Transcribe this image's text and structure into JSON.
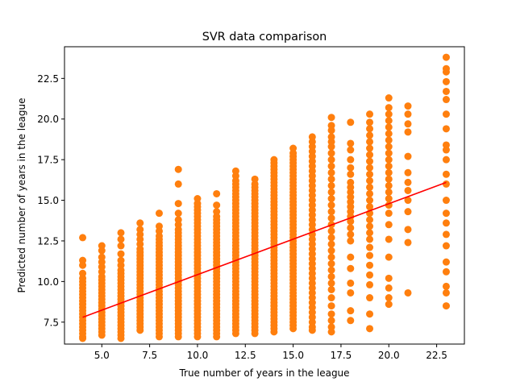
{
  "chart_data": {
    "type": "scatter",
    "title": "SVR data comparison",
    "xlabel": "True number of years in the league",
    "ylabel": "Predicted number of years in the league",
    "xlim": [
      3.05,
      23.95
    ],
    "ylim": [
      6.15,
      24.45
    ],
    "xticks": [
      5.0,
      7.5,
      10.0,
      12.5,
      15.0,
      17.5,
      20.0,
      22.5
    ],
    "xtick_labels": [
      "5.0",
      "7.5",
      "10.0",
      "12.5",
      "15.0",
      "17.5",
      "20.0",
      "22.5"
    ],
    "yticks": [
      7.5,
      10.0,
      12.5,
      15.0,
      17.5,
      20.0,
      22.5
    ],
    "ytick_labels": [
      "7.5",
      "10.0",
      "12.5",
      "15.0",
      "17.5",
      "20.0",
      "22.5"
    ],
    "grid": false,
    "legend": "none",
    "point_color": "#ff7f0e",
    "line_color": "#ff0000",
    "columns": [
      {
        "x": 4,
        "points": [
          6.5,
          6.6,
          6.8,
          7.0,
          7.2,
          7.4,
          7.6,
          7.8,
          8.0,
          8.2,
          8.4,
          8.6,
          8.8,
          9.0,
          9.2,
          9.4,
          9.6,
          9.8,
          10.0,
          10.2,
          10.5,
          11.0,
          11.3,
          12.7
        ]
      },
      {
        "x": 5,
        "points": [
          6.7,
          6.9,
          7.1,
          7.3,
          7.5,
          7.7,
          7.9,
          8.1,
          8.3,
          8.5,
          8.7,
          8.9,
          9.1,
          9.3,
          9.5,
          9.7,
          9.9,
          10.1,
          10.3,
          10.6,
          10.9,
          11.2,
          11.5,
          11.9,
          12.2
        ]
      },
      {
        "x": 6,
        "points": [
          6.5,
          6.7,
          6.9,
          7.1,
          7.3,
          7.5,
          7.7,
          7.9,
          8.1,
          8.3,
          8.5,
          8.7,
          8.9,
          9.1,
          9.3,
          9.5,
          9.7,
          9.9,
          10.1,
          10.3,
          10.5,
          10.7,
          11.0,
          11.3,
          11.7,
          12.2,
          12.6,
          13.0
        ]
      },
      {
        "x": 7,
        "points": [
          7.0,
          7.2,
          7.4,
          7.6,
          7.8,
          8.0,
          8.2,
          8.4,
          8.6,
          8.8,
          9.0,
          9.2,
          9.4,
          9.6,
          9.8,
          10.0,
          10.2,
          10.4,
          10.6,
          10.8,
          11.0,
          11.2,
          11.4,
          11.6,
          11.8,
          12.0,
          12.3,
          12.6,
          12.9,
          13.2,
          13.6
        ]
      },
      {
        "x": 8,
        "points": [
          6.6,
          6.8,
          7.0,
          7.2,
          7.4,
          7.6,
          7.8,
          8.0,
          8.2,
          8.4,
          8.6,
          8.8,
          9.0,
          9.2,
          9.4,
          9.6,
          9.8,
          10.0,
          10.2,
          10.4,
          10.6,
          10.8,
          11.0,
          11.2,
          11.4,
          11.6,
          11.8,
          12.0,
          12.2,
          12.4,
          12.6,
          12.8,
          13.1,
          13.4,
          14.2
        ]
      },
      {
        "x": 9,
        "points": [
          6.6,
          6.8,
          7.0,
          7.2,
          7.4,
          7.6,
          7.8,
          8.0,
          8.2,
          8.4,
          8.6,
          8.8,
          9.0,
          9.2,
          9.4,
          9.6,
          9.8,
          10.0,
          10.2,
          10.4,
          10.6,
          10.8,
          11.0,
          11.2,
          11.4,
          11.6,
          11.8,
          12.0,
          12.2,
          12.4,
          12.6,
          12.8,
          13.0,
          13.2,
          13.5,
          13.8,
          14.2,
          14.8,
          16.0,
          16.9
        ]
      },
      {
        "x": 10,
        "points": [
          6.6,
          6.8,
          7.0,
          7.2,
          7.4,
          7.6,
          7.8,
          8.0,
          8.2,
          8.4,
          8.6,
          8.8,
          9.0,
          9.2,
          9.4,
          9.6,
          9.8,
          10.0,
          10.2,
          10.4,
          10.6,
          10.8,
          11.0,
          11.2,
          11.4,
          11.6,
          11.8,
          12.0,
          12.2,
          12.4,
          12.6,
          12.8,
          13.0,
          13.2,
          13.4,
          13.6,
          13.8,
          14.0,
          14.2,
          14.4,
          14.6,
          14.8,
          15.1
        ]
      },
      {
        "x": 11,
        "points": [
          6.6,
          6.8,
          7.0,
          7.2,
          7.4,
          7.6,
          7.8,
          8.0,
          8.2,
          8.4,
          8.6,
          8.8,
          9.0,
          9.2,
          9.4,
          9.6,
          9.8,
          10.0,
          10.2,
          10.4,
          10.6,
          10.8,
          11.0,
          11.2,
          11.4,
          11.6,
          11.8,
          12.0,
          12.2,
          12.4,
          12.6,
          12.8,
          13.0,
          13.2,
          13.4,
          13.6,
          13.8,
          14.0,
          14.3,
          14.7,
          15.4
        ]
      },
      {
        "x": 12,
        "points": [
          6.8,
          7.0,
          7.2,
          7.4,
          7.6,
          7.8,
          8.0,
          8.2,
          8.4,
          8.6,
          8.8,
          9.0,
          9.2,
          9.4,
          9.6,
          9.8,
          10.0,
          10.2,
          10.4,
          10.6,
          10.8,
          11.0,
          11.2,
          11.4,
          11.6,
          11.8,
          12.0,
          12.2,
          12.4,
          12.6,
          12.8,
          13.0,
          13.2,
          13.4,
          13.6,
          13.8,
          14.0,
          14.2,
          14.4,
          14.6,
          14.8,
          15.0,
          15.2,
          15.4,
          15.6,
          15.8,
          16.0,
          16.2,
          16.5,
          16.8
        ]
      },
      {
        "x": 13,
        "points": [
          6.8,
          7.0,
          7.2,
          7.4,
          7.6,
          7.8,
          8.0,
          8.2,
          8.4,
          8.6,
          8.8,
          9.0,
          9.2,
          9.4,
          9.6,
          9.8,
          10.0,
          10.2,
          10.4,
          10.6,
          10.8,
          11.0,
          11.2,
          11.4,
          11.6,
          11.8,
          12.0,
          12.2,
          12.4,
          12.6,
          12.8,
          13.0,
          13.2,
          13.4,
          13.6,
          13.8,
          14.0,
          14.2,
          14.4,
          14.6,
          14.8,
          15.0,
          15.2,
          15.4,
          15.6,
          15.8,
          16.0,
          16.3
        ]
      },
      {
        "x": 14,
        "points": [
          6.9,
          7.1,
          7.3,
          7.5,
          7.7,
          7.9,
          8.1,
          8.3,
          8.5,
          8.7,
          8.9,
          9.1,
          9.3,
          9.5,
          9.7,
          9.9,
          10.1,
          10.3,
          10.5,
          10.7,
          10.9,
          11.1,
          11.3,
          11.5,
          11.7,
          11.9,
          12.1,
          12.3,
          12.5,
          12.7,
          12.9,
          13.1,
          13.3,
          13.5,
          13.7,
          13.9,
          14.1,
          14.3,
          14.5,
          14.7,
          14.9,
          15.1,
          15.3,
          15.5,
          15.7,
          15.9,
          16.1,
          16.3,
          16.5,
          16.7,
          16.9,
          17.1,
          17.3,
          17.5
        ]
      },
      {
        "x": 15,
        "points": [
          7.1,
          7.3,
          7.5,
          7.7,
          7.9,
          8.1,
          8.3,
          8.5,
          8.7,
          8.9,
          9.1,
          9.3,
          9.5,
          9.7,
          9.9,
          10.1,
          10.3,
          10.5,
          10.7,
          10.9,
          11.1,
          11.3,
          11.5,
          11.7,
          11.9,
          12.1,
          12.3,
          12.5,
          12.7,
          12.9,
          13.1,
          13.3,
          13.5,
          13.7,
          13.9,
          14.1,
          14.3,
          14.5,
          14.7,
          14.9,
          15.1,
          15.3,
          15.5,
          15.7,
          15.9,
          16.1,
          16.3,
          16.5,
          16.7,
          16.9,
          17.1,
          17.3,
          17.5,
          17.7,
          17.9,
          18.2
        ]
      },
      {
        "x": 16,
        "points": [
          7.0,
          7.2,
          7.5,
          7.8,
          8.1,
          8.4,
          8.7,
          9.0,
          9.3,
          9.6,
          9.9,
          10.2,
          10.5,
          10.8,
          11.1,
          11.4,
          11.7,
          12.0,
          12.3,
          12.6,
          12.9,
          13.2,
          13.5,
          13.8,
          14.1,
          14.4,
          14.7,
          15.0,
          15.3,
          15.6,
          15.9,
          16.2,
          16.5,
          16.8,
          17.1,
          17.4,
          17.7,
          18.0,
          18.3,
          18.6,
          18.9
        ]
      },
      {
        "x": 17,
        "points": [
          6.9,
          7.2,
          7.6,
          8.0,
          8.5,
          9.0,
          9.5,
          9.9,
          10.3,
          10.7,
          11.1,
          11.5,
          11.9,
          12.3,
          12.7,
          13.1,
          13.5,
          13.9,
          14.3,
          14.7,
          15.1,
          15.5,
          15.9,
          16.3,
          16.7,
          17.1,
          17.5,
          17.9,
          18.3,
          18.6,
          18.9,
          19.3,
          19.6,
          20.1
        ]
      },
      {
        "x": 18,
        "points": [
          7.6,
          8.2,
          9.3,
          9.9,
          10.8,
          11.5,
          12.5,
          12.9,
          13.3,
          13.7,
          14.0,
          14.3,
          14.6,
          14.9,
          15.2,
          15.5,
          15.8,
          16.1,
          16.6,
          17.0,
          17.5,
          18.1,
          18.5,
          19.8
        ]
      },
      {
        "x": 19,
        "points": [
          7.1,
          8.0,
          9.0,
          9.8,
          10.4,
          11.0,
          11.6,
          12.1,
          12.6,
          13.0,
          13.4,
          13.8,
          14.2,
          14.6,
          15.0,
          15.4,
          15.8,
          16.2,
          16.6,
          17.0,
          17.4,
          17.8,
          18.2,
          18.6,
          19.0,
          19.4,
          19.8,
          20.3
        ]
      },
      {
        "x": 20,
        "points": [
          8.6,
          9.0,
          9.6,
          10.2,
          11.5,
          12.6,
          13.5,
          14.2,
          14.7,
          15.1,
          15.5,
          15.9,
          16.3,
          16.7,
          17.1,
          17.5,
          17.9,
          18.3,
          18.7,
          19.1,
          19.5,
          19.9,
          20.3,
          20.7,
          21.3
        ]
      },
      {
        "x": 21,
        "points": [
          9.3,
          12.4,
          13.2,
          14.3,
          15.0,
          15.6,
          16.1,
          16.7,
          17.7,
          19.2,
          19.7,
          20.3,
          20.8
        ]
      },
      {
        "x": 23,
        "points": [
          8.5,
          9.3,
          9.7,
          10.6,
          11.2,
          12.2,
          12.9,
          13.6,
          14.2,
          15.0,
          16.0,
          16.6,
          17.5,
          18.1,
          18.4,
          19.4,
          20.3,
          21.2,
          21.7,
          22.3,
          22.9,
          23.1,
          23.8
        ]
      }
    ],
    "regression_line": {
      "x": [
        4,
        23
      ],
      "y": [
        7.8,
        16.1
      ]
    }
  }
}
